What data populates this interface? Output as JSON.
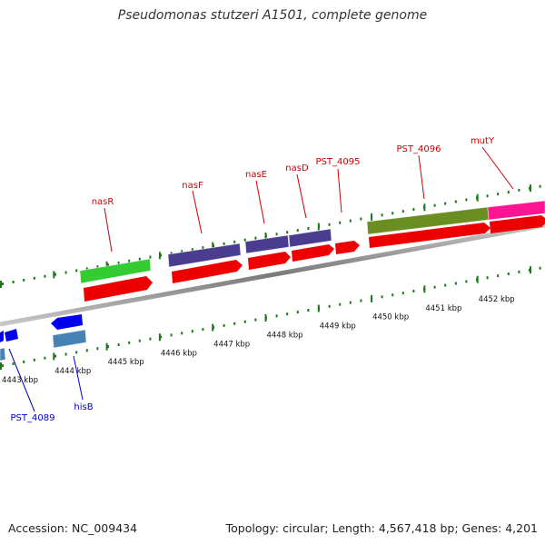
{
  "title": "Pseudomonas stutzeri A1501, complete genome",
  "footer": {
    "accession": "Accession: NC_009434",
    "topology": "Topology: circular; Length: 4,567,418 bp; Genes: 4,201"
  },
  "colors": {
    "forward_label": "#cc0000",
    "reverse_label": "#0000cc",
    "cds": "#ee0000",
    "backbone": "#8a8a8a",
    "tick": "#1a7a1a"
  },
  "scale": {
    "ticks": [
      {
        "label": "4443 kbp"
      },
      {
        "label": "4444 kbp"
      },
      {
        "label": "4445 kbp"
      },
      {
        "label": "4446 kbp"
      },
      {
        "label": "4447 kbp"
      },
      {
        "label": "4448 kbp"
      },
      {
        "label": "4449 kbp"
      },
      {
        "label": "4450 kbp"
      },
      {
        "label": "4451 kbp"
      },
      {
        "label": "4452 kbp"
      }
    ]
  },
  "features": {
    "forward": [
      {
        "name": "nasR",
        "gene_color": "#33cc33"
      },
      {
        "name": "nasF",
        "gene_color": "#4a3d8f"
      },
      {
        "name": "nasE",
        "gene_color": "#4a3d8f"
      },
      {
        "name": "nasD",
        "gene_color": "#4a3d8f"
      },
      {
        "name": "PST_4095",
        "gene_color": ""
      },
      {
        "name": "PST_4096",
        "gene_color": "#6b8e23"
      },
      {
        "name": "mutY",
        "gene_color": "#ff1493"
      }
    ],
    "reverse": [
      {
        "name": "PST_4089",
        "gene_color": "#4682b4"
      },
      {
        "name": "hisB",
        "gene_color": "#4682b4"
      }
    ]
  }
}
